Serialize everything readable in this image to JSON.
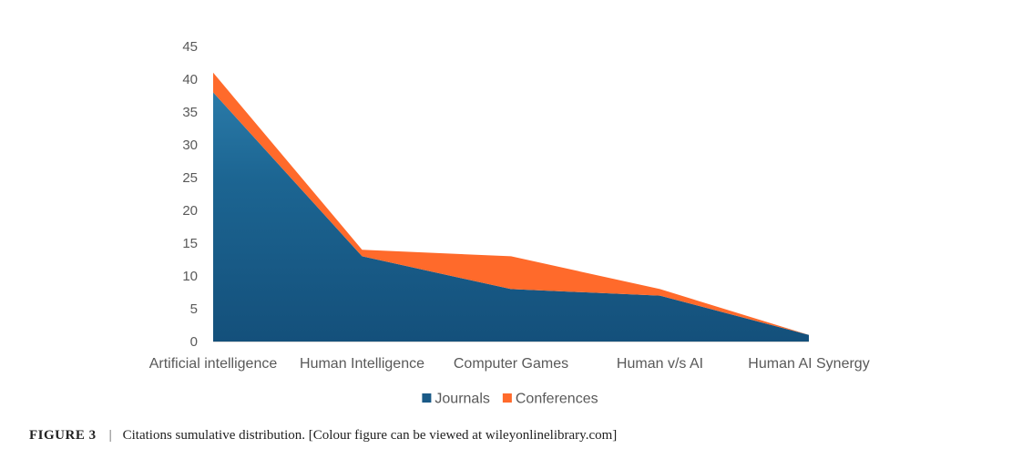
{
  "chart_data": {
    "type": "area",
    "stacked": true,
    "categories": [
      "Artificial intelligence",
      "Human Intelligence",
      "Computer Games",
      "Human v/s AI",
      "Human AI Synergy"
    ],
    "series": [
      {
        "name": "Journals",
        "values": [
          38,
          13,
          8,
          7,
          1
        ],
        "color": "#1a5a87"
      },
      {
        "name": "Conferences",
        "values": [
          3,
          1,
          5,
          1,
          0
        ],
        "color": "#ff6a2b"
      }
    ],
    "ylim": [
      0,
      45
    ],
    "yticks": [
      0,
      5,
      10,
      15,
      20,
      25,
      30,
      35,
      40,
      45
    ],
    "grid": false,
    "legend_position": "bottom"
  },
  "caption": {
    "label": "FIGURE 3",
    "separator": "|",
    "text": "Citations sumulative distribution. [Colour figure can be viewed at wileyonlinelibrary.com]"
  }
}
